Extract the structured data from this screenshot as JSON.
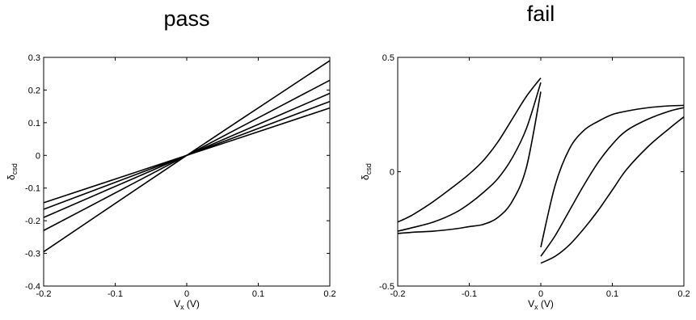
{
  "chart_data": [
    {
      "type": "line",
      "title": "pass",
      "xlabel": "V",
      "xlabel_sub": "x",
      "xlabel_unit": "(V)",
      "ylabel": "δ",
      "ylabel_sub": "csd",
      "xlim": [
        -0.2,
        0.2
      ],
      "ylim": [
        -0.4,
        0.3
      ],
      "xticks": [
        -0.2,
        -0.1,
        0,
        0.1,
        0.2
      ],
      "xtick_labels": [
        "-0.2",
        "-0.1",
        "0",
        "0.1",
        "0.2"
      ],
      "yticks": [
        -0.4,
        -0.3,
        -0.2,
        -0.1,
        0,
        0.1,
        0.2,
        0.3
      ],
      "ytick_labels": [
        "-0.4",
        "-0.3",
        "-0.2",
        "-0.1",
        "0",
        "0.1",
        "0.2",
        "0.3"
      ],
      "grid": false,
      "color": "#000000",
      "series": [
        {
          "x": [
            -0.2,
            0,
            0.2
          ],
          "y": [
            -0.295,
            0,
            0.29
          ]
        },
        {
          "x": [
            -0.2,
            0,
            0.2
          ],
          "y": [
            -0.23,
            0,
            0.23
          ]
        },
        {
          "x": [
            -0.2,
            0,
            0.2
          ],
          "y": [
            -0.19,
            0,
            0.19
          ]
        },
        {
          "x": [
            -0.2,
            0,
            0.2
          ],
          "y": [
            -0.165,
            0,
            0.165
          ]
        },
        {
          "x": [
            -0.2,
            0,
            0.2
          ],
          "y": [
            -0.145,
            0,
            0.145
          ]
        }
      ]
    },
    {
      "type": "line",
      "title": "fail",
      "xlabel": "V",
      "xlabel_sub": "x",
      "xlabel_unit": "(V)",
      "ylabel": "δ",
      "ylabel_sub": "csd",
      "xlim": [
        -0.2,
        0.2
      ],
      "ylim": [
        -0.5,
        0.5
      ],
      "xticks": [
        -0.2,
        -0.1,
        0,
        0.1,
        0.2
      ],
      "xtick_labels": [
        "-0.2",
        "-0.1",
        "0",
        "0.1",
        "0.2"
      ],
      "yticks": [
        -0.5,
        0,
        0.5
      ],
      "ytick_labels": [
        "-0.5",
        "0",
        "0.5"
      ],
      "grid": false,
      "color": "#000000",
      "series": [
        {
          "x": [
            -0.2,
            -0.18,
            -0.15,
            -0.12,
            -0.1,
            -0.08,
            -0.06,
            -0.04,
            -0.02,
            0
          ],
          "y": [
            -0.22,
            -0.19,
            -0.13,
            -0.06,
            -0.01,
            0.05,
            0.13,
            0.23,
            0.33,
            0.41
          ]
        },
        {
          "x": [
            -0.2,
            -0.18,
            -0.15,
            -0.12,
            -0.1,
            -0.08,
            -0.06,
            -0.04,
            -0.02,
            0
          ],
          "y": [
            -0.26,
            -0.245,
            -0.22,
            -0.18,
            -0.14,
            -0.09,
            -0.03,
            0.06,
            0.19,
            0.39
          ]
        },
        {
          "x": [
            -0.2,
            -0.18,
            -0.15,
            -0.12,
            -0.1,
            -0.08,
            -0.06,
            -0.04,
            -0.02,
            0
          ],
          "y": [
            -0.27,
            -0.265,
            -0.26,
            -0.25,
            -0.24,
            -0.23,
            -0.2,
            -0.13,
            0.02,
            0.35
          ]
        },
        {
          "x": [
            0,
            0.02,
            0.04,
            0.06,
            0.08,
            0.1,
            0.12,
            0.15,
            0.18,
            0.2
          ],
          "y": [
            -0.33,
            -0.06,
            0.1,
            0.18,
            0.22,
            0.25,
            0.265,
            0.28,
            0.288,
            0.29
          ]
        },
        {
          "x": [
            0,
            0.02,
            0.04,
            0.06,
            0.08,
            0.1,
            0.12,
            0.15,
            0.18,
            0.2
          ],
          "y": [
            -0.37,
            -0.28,
            -0.17,
            -0.06,
            0.04,
            0.12,
            0.18,
            0.23,
            0.265,
            0.28
          ]
        },
        {
          "x": [
            0,
            0.02,
            0.04,
            0.06,
            0.08,
            0.1,
            0.12,
            0.15,
            0.18,
            0.2
          ],
          "y": [
            -0.4,
            -0.37,
            -0.32,
            -0.25,
            -0.17,
            -0.08,
            0.01,
            0.11,
            0.19,
            0.24
          ]
        }
      ]
    }
  ]
}
